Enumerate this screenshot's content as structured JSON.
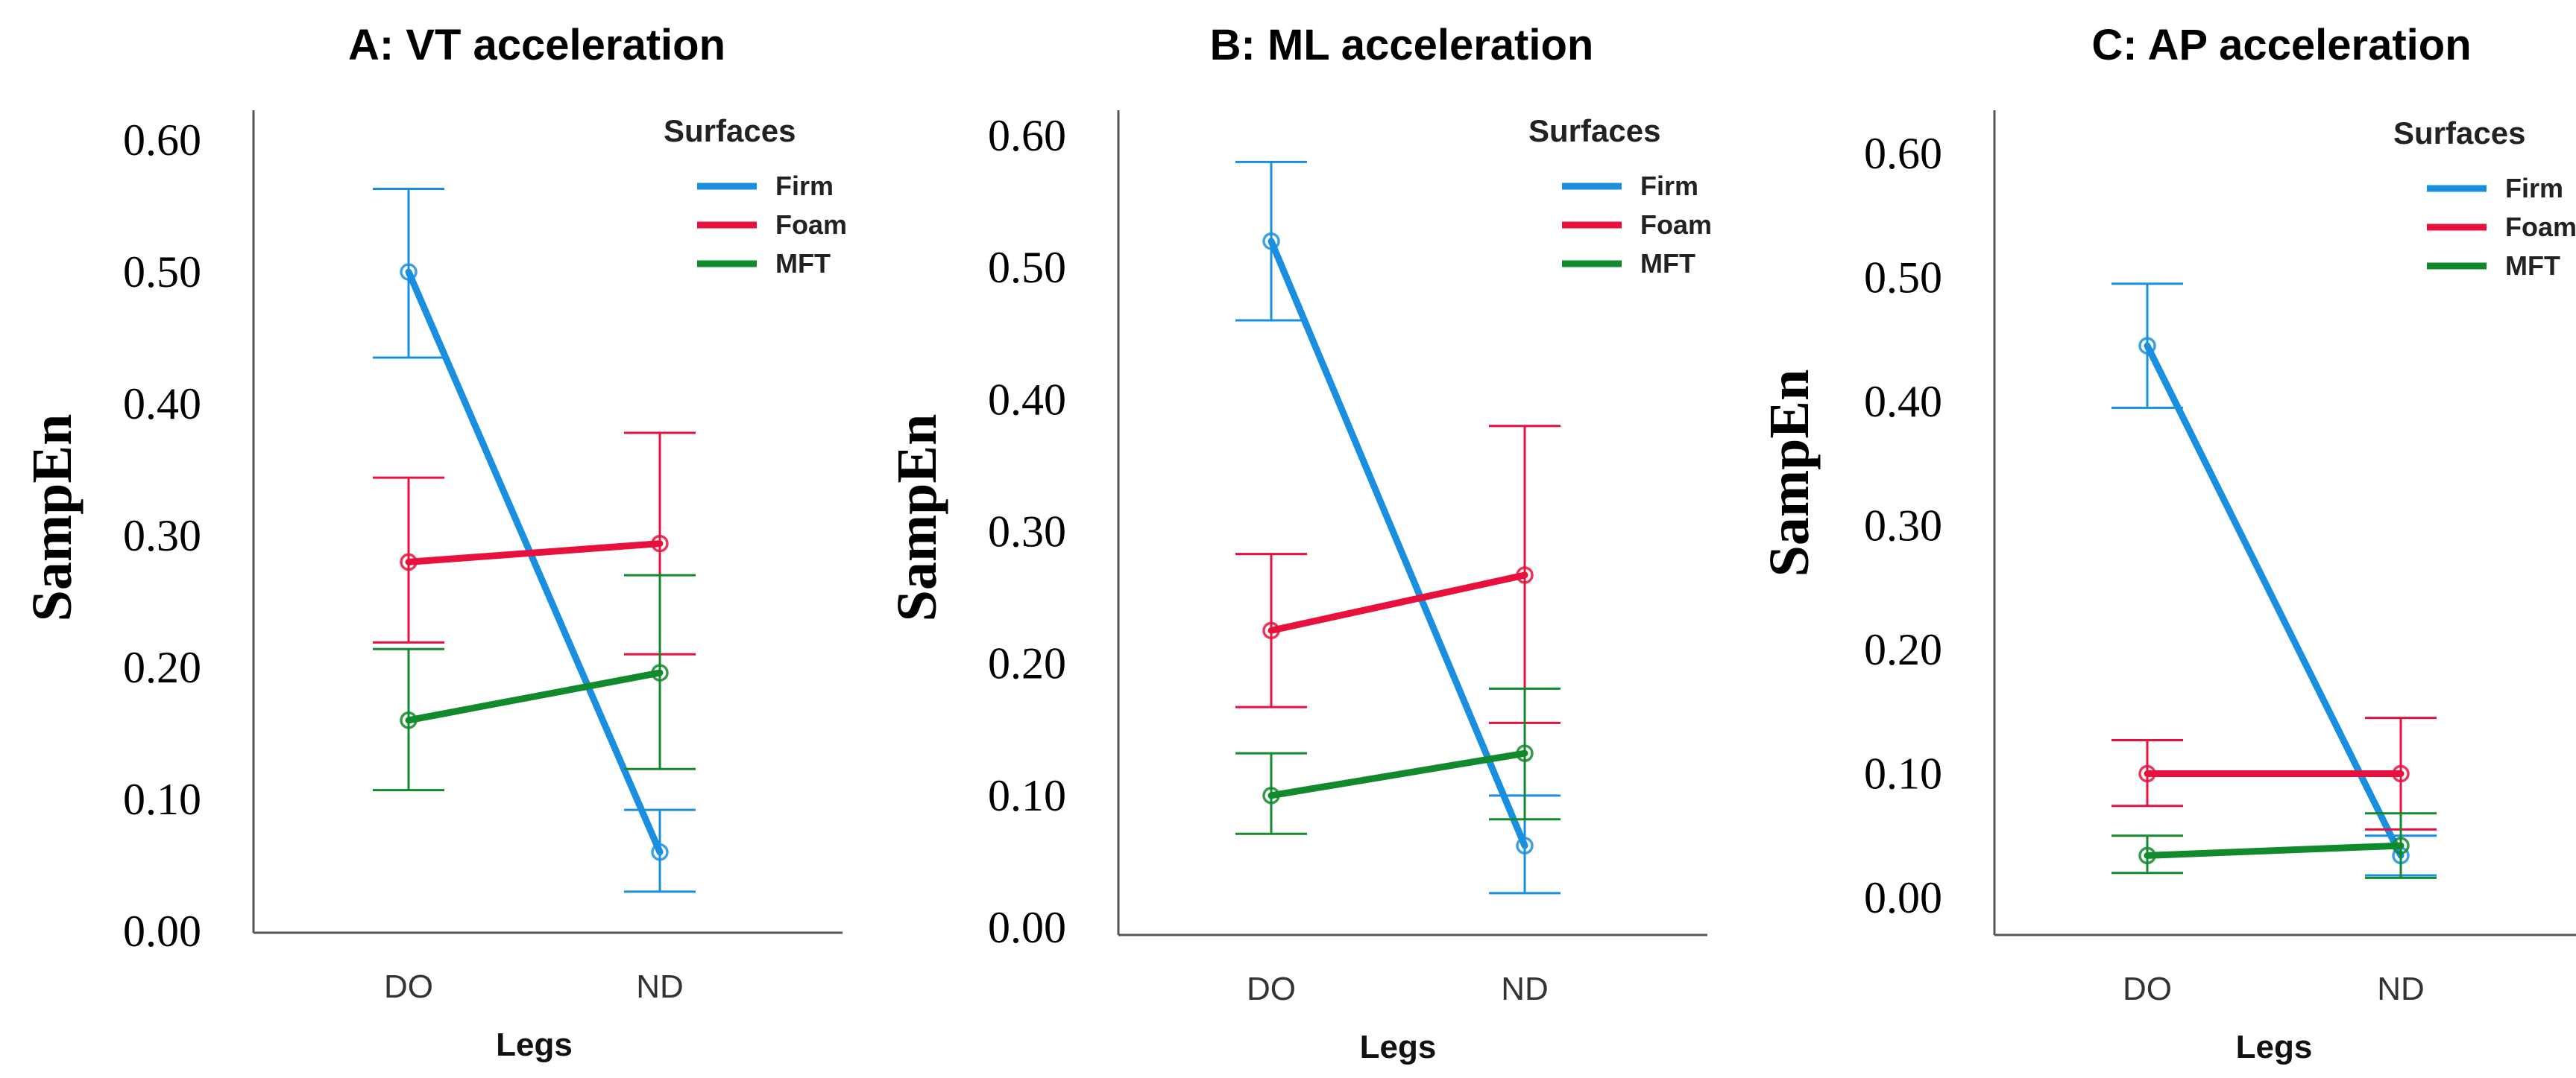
{
  "chart_data": [
    {
      "type": "line",
      "title": "A: VT acceleration",
      "xlabel": "Legs",
      "ylabel": "SampEn",
      "categories": [
        "DO",
        "ND"
      ],
      "ylim": [
        0,
        0.6
      ],
      "yticks": [
        "0.00",
        "0.10",
        "0.20",
        "0.30",
        "0.40",
        "0.50",
        "0.60"
      ],
      "legend_title": "Surfaces",
      "legend_position": "top-right",
      "series": [
        {
          "name": "Firm",
          "color": "#1a8fe0",
          "values": [
            0.5,
            0.06
          ],
          "ci_low": [
            0.435,
            0.03
          ],
          "ci_high": [
            0.563,
            0.092
          ]
        },
        {
          "name": "Foam",
          "color": "#e8113e",
          "values": [
            0.28,
            0.294
          ],
          "ci_low": [
            0.219,
            0.21
          ],
          "ci_high": [
            0.344,
            0.378
          ]
        },
        {
          "name": "MFT",
          "color": "#108a2c",
          "values": [
            0.16,
            0.196
          ],
          "ci_low": [
            0.107,
            0.123
          ],
          "ci_high": [
            0.214,
            0.27
          ]
        }
      ]
    },
    {
      "type": "line",
      "title": "B: ML acceleration",
      "xlabel": "Legs",
      "ylabel": "SampEn",
      "categories": [
        "DO",
        "ND"
      ],
      "ylim": [
        0,
        0.6
      ],
      "yticks": [
        "0.00",
        "0.10",
        "0.20",
        "0.30",
        "0.40",
        "0.50",
        "0.60"
      ],
      "legend_title": "Surfaces",
      "legend_position": "top-right",
      "series": [
        {
          "name": "Firm",
          "color": "#1a8fe0",
          "values": [
            0.52,
            0.062
          ],
          "ci_low": [
            0.46,
            0.026
          ],
          "ci_high": [
            0.58,
            0.1
          ]
        },
        {
          "name": "Foam",
          "color": "#e8113e",
          "values": [
            0.225,
            0.267
          ],
          "ci_low": [
            0.167,
            0.155
          ],
          "ci_high": [
            0.283,
            0.38
          ]
        },
        {
          "name": "MFT",
          "color": "#108a2c",
          "values": [
            0.1,
            0.132
          ],
          "ci_low": [
            0.071,
            0.082
          ],
          "ci_high": [
            0.132,
            0.181
          ]
        }
      ]
    },
    {
      "type": "line",
      "title": "C: AP acceleration",
      "xlabel": "Legs",
      "ylabel": "SampEn",
      "categories": [
        "DO",
        "ND"
      ],
      "ylim": [
        0,
        0.6
      ],
      "yticks": [
        "0.00",
        "0.10",
        "0.20",
        "0.30",
        "0.40",
        "0.50",
        "0.60"
      ],
      "legend_title": "Surfaces",
      "legend_position": "top-right",
      "series": [
        {
          "name": "Firm",
          "color": "#1a8fe0",
          "values": [
            0.445,
            0.034
          ],
          "ci_low": [
            0.395,
            0.018
          ],
          "ci_high": [
            0.495,
            0.05
          ]
        },
        {
          "name": "Foam",
          "color": "#e8113e",
          "values": [
            0.1,
            0.1
          ],
          "ci_low": [
            0.074,
            0.055
          ],
          "ci_high": [
            0.127,
            0.145
          ]
        },
        {
          "name": "MFT",
          "color": "#108a2c",
          "values": [
            0.034,
            0.042
          ],
          "ci_low": [
            0.02,
            0.016
          ],
          "ci_high": [
            0.05,
            0.068
          ]
        }
      ]
    }
  ]
}
